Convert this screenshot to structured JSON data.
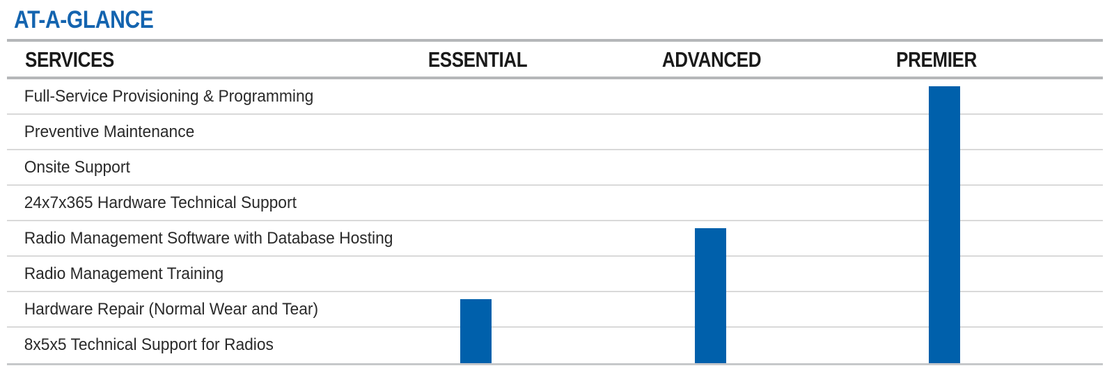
{
  "title": "AT-A-GLANCE",
  "colors": {
    "title_blue": "#1464af",
    "bar_blue": "#0060ab",
    "header_text": "#1a1a1a",
    "row_text": "#2a2a2a",
    "thick_rule": "#b5b7b9",
    "thin_rule": "#d9d9d9",
    "bottom_rule": "#c6c8ca"
  },
  "table": {
    "services_header": "SERVICES",
    "rows": [
      "Full-Service Provisioning & Programming",
      "Preventive Maintenance",
      "Onsite Support",
      "24x7x365 Hardware Technical Support",
      "Radio Management Software with Database Hosting",
      "Radio Management Training",
      "Hardware Repair (Normal Wear and Tear)",
      "8x5x5 Technical Support for Radios"
    ],
    "tiers": [
      {
        "label": "ESSENTIAL",
        "coverage_start_row": 6,
        "included_services": [
          false,
          false,
          false,
          false,
          false,
          false,
          true,
          true
        ]
      },
      {
        "label": "ADVANCED",
        "coverage_start_row": 4,
        "included_services": [
          false,
          false,
          false,
          false,
          true,
          true,
          true,
          true
        ]
      },
      {
        "label": "PREMIER",
        "coverage_start_row": 0,
        "included_services": [
          true,
          true,
          true,
          true,
          true,
          true,
          true,
          true
        ]
      }
    ]
  }
}
